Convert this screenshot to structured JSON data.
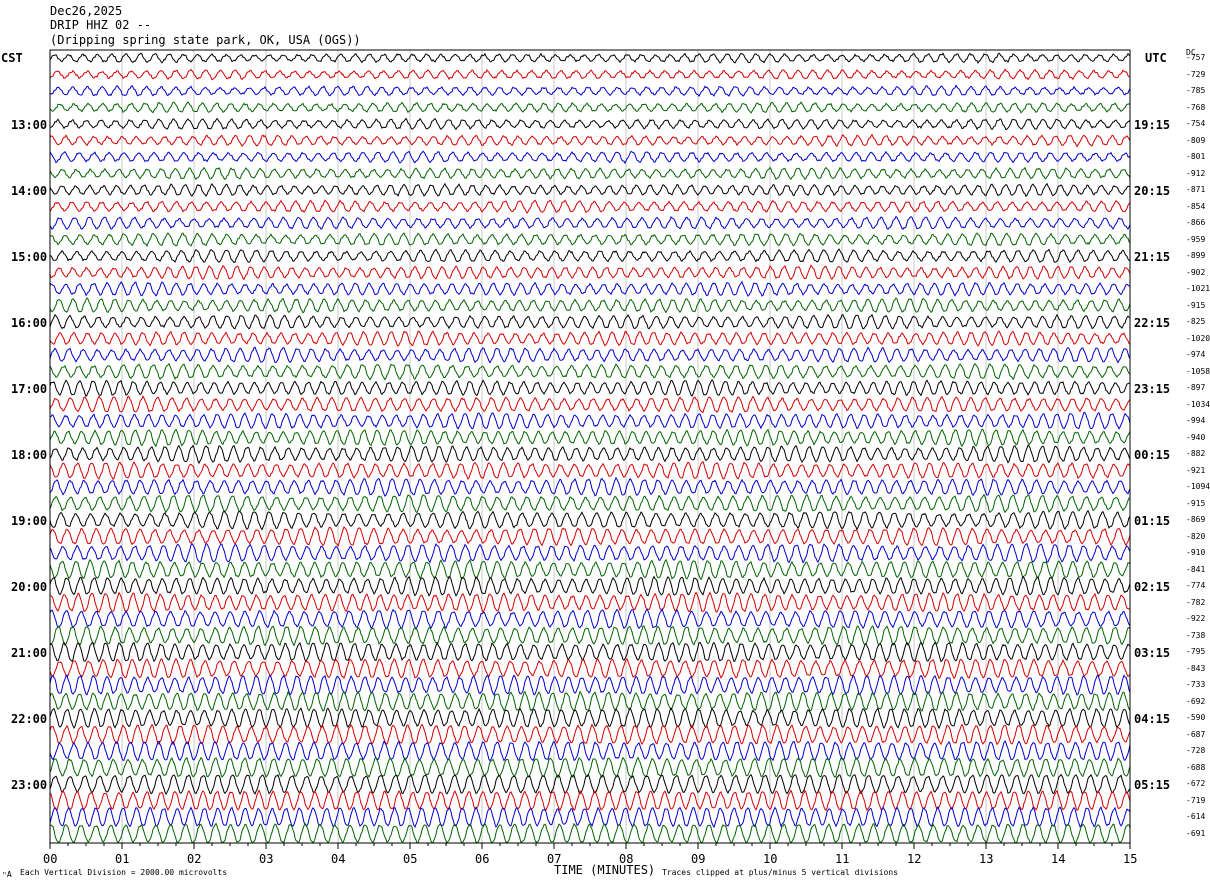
{
  "header": {
    "date": "Dec26,2025",
    "station": "DRIP HHZ 02 --",
    "location": "(Dripping spring state park, OK, USA (OGS))"
  },
  "left_tz": "CST",
  "right_tz": "UTC",
  "dc_label": "DC",
  "footer": {
    "scale_note": "Each Vertical Division = 2000.00 microvolts",
    "x_title": "TIME (MINUTES)",
    "clip_note": "Traces clipped at plus/minus 5 vertical divisions",
    "corner_mark": "ⁿA"
  },
  "chart_data": {
    "type": "line",
    "title": "DRIP HHZ 02 --",
    "xlabel": "TIME (MINUTES)",
    "ylabel": "",
    "xlim": [
      0,
      15
    ],
    "x_ticks": [
      "00",
      "01",
      "02",
      "03",
      "04",
      "05",
      "06",
      "07",
      "08",
      "09",
      "10",
      "11",
      "12",
      "13",
      "14",
      "15"
    ],
    "trace_minutes": 15,
    "trace_colors": [
      "#000000",
      "#d40000",
      "#0000cc",
      "#006400"
    ],
    "grid": true,
    "left_hour_labels": [
      "13:00",
      "14:00",
      "15:00",
      "16:00",
      "17:00",
      "18:00",
      "19:00",
      "20:00",
      "21:00",
      "22:00",
      "23:00"
    ],
    "right_hour_labels": [
      "19:15",
      "20:15",
      "21:15",
      "22:15",
      "23:15",
      "00:15",
      "01:15",
      "02:15",
      "03:15",
      "04:15",
      "05:15"
    ],
    "dc_offsets": [
      -757,
      -729,
      -785,
      -768,
      -754,
      -809,
      -801,
      -912,
      -871,
      -854,
      -866,
      -959,
      -899,
      -902,
      -1021,
      -915,
      -825,
      -1020,
      -974,
      -1058,
      -897,
      -1034,
      -994,
      -940,
      -882,
      -921,
      -1094,
      -915,
      -869,
      -820,
      -910,
      -841,
      -774,
      -782,
      -922,
      -738,
      -795,
      -843,
      -733,
      -692,
      -590,
      -687,
      -728,
      -688,
      -672,
      -719,
      -614,
      -691
    ]
  }
}
